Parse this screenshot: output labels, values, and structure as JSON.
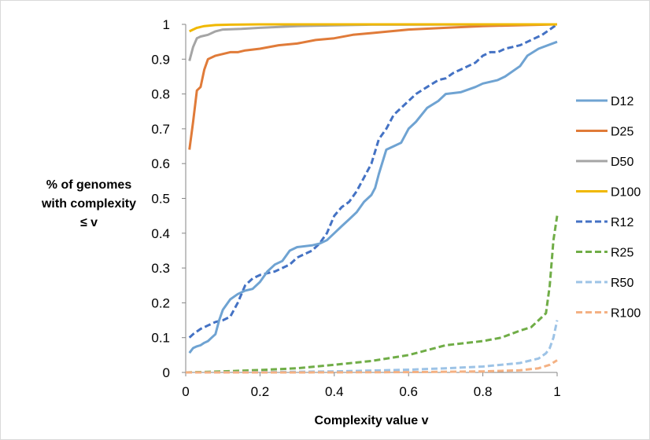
{
  "chart_data": {
    "type": "line",
    "title": "",
    "xlabel": "Complexity value v",
    "ylabel_lines": [
      "% of genomes",
      "with complexity",
      "≤ v"
    ],
    "xlim": [
      0,
      1
    ],
    "ylim": [
      0,
      1
    ],
    "x_ticks": [
      "0",
      "0.2",
      "0.4",
      "0.6",
      "0.8",
      "1"
    ],
    "y_ticks": [
      "0",
      "0.1",
      "0.2",
      "0.3",
      "0.4",
      "0.5",
      "0.6",
      "0.7",
      "0.8",
      "0.9",
      "1"
    ],
    "grid": false,
    "legend_position": "right",
    "series": [
      {
        "name": "D12",
        "color": "#6fa3d2",
        "dashed": false,
        "x": [
          0.01,
          0.02,
          0.03,
          0.04,
          0.05,
          0.06,
          0.07,
          0.08,
          0.09,
          0.1,
          0.12,
          0.14,
          0.16,
          0.18,
          0.2,
          0.22,
          0.24,
          0.26,
          0.28,
          0.3,
          0.34,
          0.36,
          0.38,
          0.4,
          0.42,
          0.44,
          0.46,
          0.48,
          0.5,
          0.51,
          0.52,
          0.54,
          0.56,
          0.58,
          0.6,
          0.62,
          0.65,
          0.68,
          0.7,
          0.74,
          0.78,
          0.8,
          0.84,
          0.86,
          0.9,
          0.92,
          0.95,
          1.0
        ],
        "y": [
          0.056,
          0.07,
          0.075,
          0.078,
          0.085,
          0.09,
          0.1,
          0.11,
          0.15,
          0.18,
          0.21,
          0.225,
          0.235,
          0.24,
          0.26,
          0.29,
          0.31,
          0.32,
          0.35,
          0.36,
          0.365,
          0.37,
          0.38,
          0.4,
          0.42,
          0.44,
          0.46,
          0.49,
          0.51,
          0.53,
          0.57,
          0.64,
          0.65,
          0.66,
          0.7,
          0.72,
          0.76,
          0.78,
          0.8,
          0.805,
          0.82,
          0.83,
          0.84,
          0.85,
          0.88,
          0.91,
          0.93,
          0.95
        ]
      },
      {
        "name": "D25",
        "color": "#e07b39",
        "dashed": false,
        "x": [
          0.01,
          0.02,
          0.03,
          0.04,
          0.05,
          0.06,
          0.08,
          0.1,
          0.12,
          0.14,
          0.16,
          0.2,
          0.25,
          0.3,
          0.35,
          0.4,
          0.45,
          0.5,
          0.55,
          0.6,
          0.7,
          0.8,
          1.0
        ],
        "y": [
          0.64,
          0.72,
          0.81,
          0.82,
          0.87,
          0.9,
          0.91,
          0.915,
          0.92,
          0.92,
          0.925,
          0.93,
          0.94,
          0.945,
          0.955,
          0.96,
          0.97,
          0.975,
          0.98,
          0.985,
          0.99,
          0.995,
          1.0
        ]
      },
      {
        "name": "D50",
        "color": "#a5a5a5",
        "dashed": false,
        "x": [
          0.01,
          0.02,
          0.03,
          0.04,
          0.06,
          0.08,
          0.1,
          0.15,
          0.2,
          0.3,
          0.4,
          0.5,
          1.0
        ],
        "y": [
          0.895,
          0.935,
          0.96,
          0.965,
          0.97,
          0.98,
          0.985,
          0.987,
          0.99,
          0.995,
          0.997,
          0.999,
          1.0
        ]
      },
      {
        "name": "D100",
        "color": "#f0b800",
        "dashed": false,
        "x": [
          0.01,
          0.02,
          0.03,
          0.05,
          0.08,
          0.12,
          0.2,
          0.3,
          0.5,
          1.0
        ],
        "y": [
          0.98,
          0.985,
          0.99,
          0.995,
          0.998,
          0.999,
          1.0,
          1.0,
          1.0,
          1.0
        ]
      },
      {
        "name": "R12",
        "color": "#4472c4",
        "dashed": true,
        "x": [
          0.01,
          0.02,
          0.04,
          0.06,
          0.08,
          0.1,
          0.12,
          0.14,
          0.16,
          0.18,
          0.2,
          0.22,
          0.24,
          0.26,
          0.28,
          0.3,
          0.32,
          0.34,
          0.36,
          0.38,
          0.4,
          0.42,
          0.44,
          0.46,
          0.48,
          0.5,
          0.52,
          0.54,
          0.56,
          0.58,
          0.6,
          0.62,
          0.65,
          0.68,
          0.7,
          0.72,
          0.74,
          0.76,
          0.78,
          0.8,
          0.82,
          0.84,
          0.86,
          0.88,
          0.9,
          0.92,
          0.94,
          0.96,
          0.98,
          1.0
        ],
        "y": [
          0.1,
          0.11,
          0.125,
          0.135,
          0.145,
          0.15,
          0.16,
          0.2,
          0.25,
          0.27,
          0.28,
          0.285,
          0.29,
          0.3,
          0.31,
          0.33,
          0.34,
          0.35,
          0.37,
          0.4,
          0.45,
          0.475,
          0.49,
          0.52,
          0.56,
          0.6,
          0.67,
          0.7,
          0.74,
          0.76,
          0.78,
          0.8,
          0.82,
          0.84,
          0.845,
          0.86,
          0.87,
          0.88,
          0.89,
          0.91,
          0.92,
          0.92,
          0.93,
          0.935,
          0.94,
          0.95,
          0.96,
          0.97,
          0.985,
          1.0
        ]
      },
      {
        "name": "R25",
        "color": "#70ad47",
        "dashed": true,
        "x": [
          0.0,
          0.1,
          0.2,
          0.3,
          0.4,
          0.5,
          0.6,
          0.7,
          0.8,
          0.85,
          0.9,
          0.93,
          0.95,
          0.97,
          0.98,
          0.99,
          1.0
        ],
        "y": [
          0.0,
          0.003,
          0.007,
          0.012,
          0.022,
          0.033,
          0.05,
          0.078,
          0.09,
          0.1,
          0.12,
          0.13,
          0.15,
          0.17,
          0.25,
          0.38,
          0.45
        ]
      },
      {
        "name": "R50",
        "color": "#9dc3e6",
        "dashed": true,
        "x": [
          0.0,
          0.2,
          0.4,
          0.6,
          0.7,
          0.8,
          0.9,
          0.95,
          0.97,
          0.98,
          0.99,
          1.0
        ],
        "y": [
          0.0,
          0.001,
          0.003,
          0.008,
          0.012,
          0.017,
          0.027,
          0.04,
          0.055,
          0.07,
          0.1,
          0.15
        ]
      },
      {
        "name": "R100",
        "color": "#f4b183",
        "dashed": true,
        "x": [
          0.0,
          0.3,
          0.6,
          0.8,
          0.9,
          0.95,
          0.98,
          1.0
        ],
        "y": [
          0.0,
          0.0,
          0.001,
          0.003,
          0.006,
          0.012,
          0.022,
          0.035
        ]
      }
    ]
  }
}
